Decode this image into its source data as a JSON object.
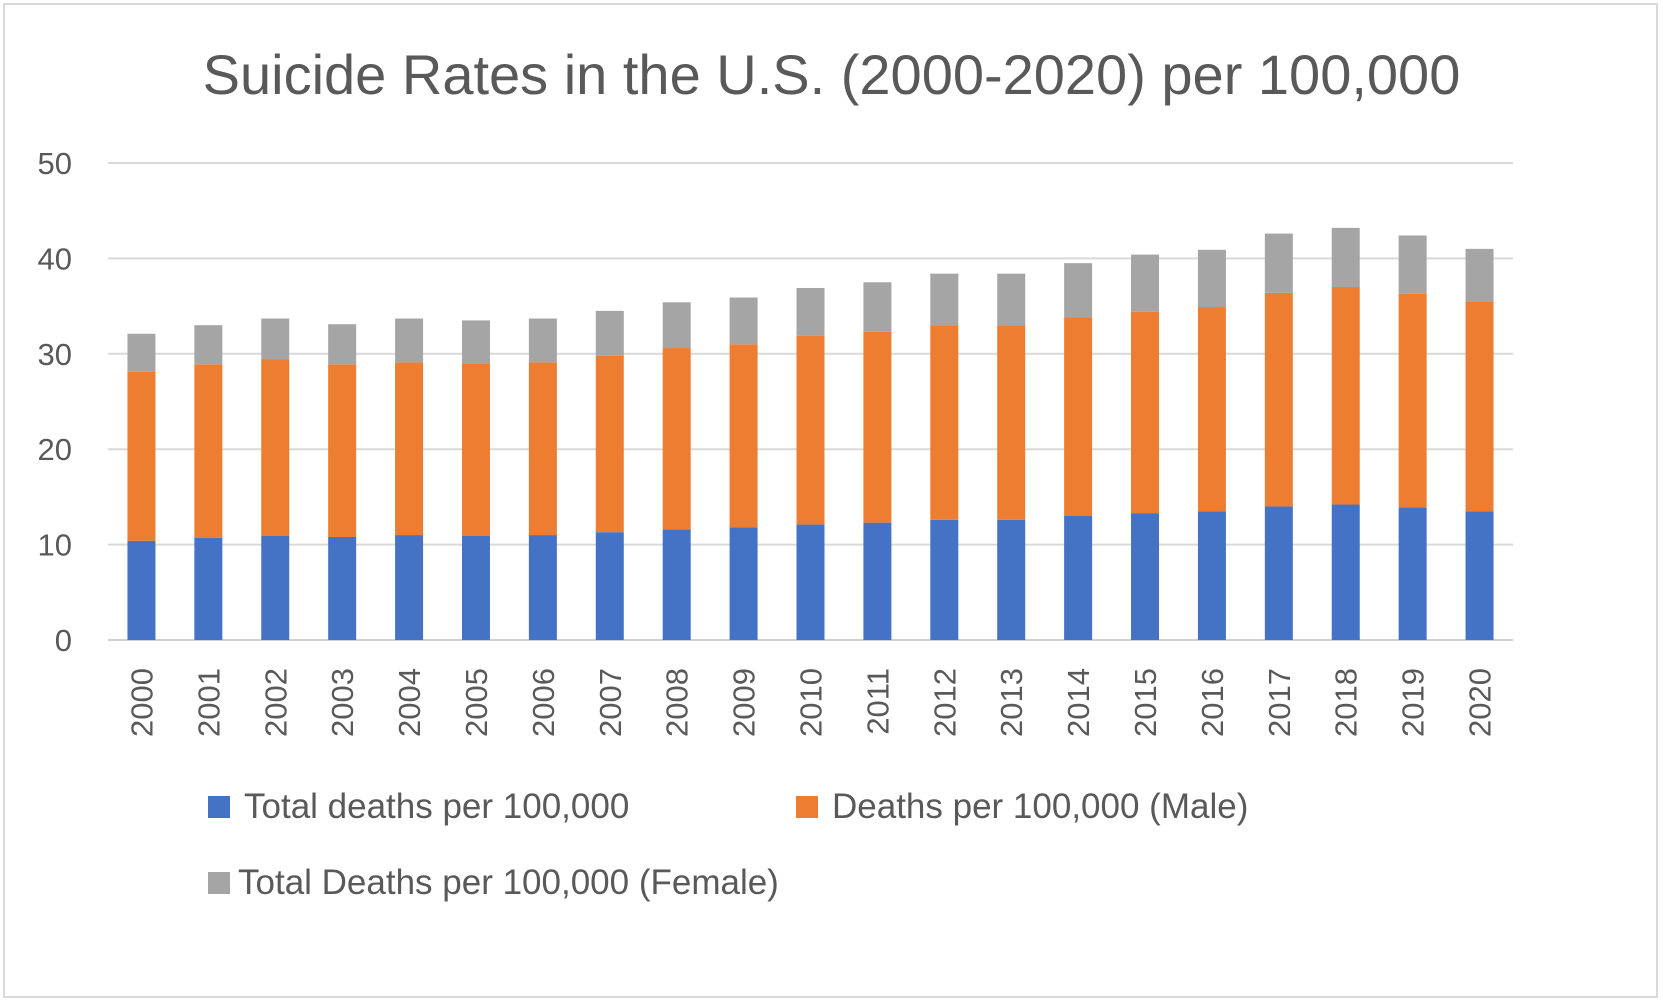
{
  "chart_data": {
    "type": "bar",
    "stacked": true,
    "title": "Suicide Rates in the U.S. (2000-2020) per 100,000",
    "xlabel": "",
    "ylabel": "",
    "ylim": [
      0,
      50
    ],
    "yticks": [
      "0",
      "10",
      "20",
      "30",
      "40",
      "50"
    ],
    "grid": true,
    "legend_position": "bottom",
    "categories": [
      "2000",
      "2001",
      "2002",
      "2003",
      "2004",
      "2005",
      "2006",
      "2007",
      "2008",
      "2009",
      "2010",
      "2011",
      "2012",
      "2013",
      "2014",
      "2015",
      "2016",
      "2017",
      "2018",
      "2019",
      "2020"
    ],
    "series": [
      {
        "name": "Total deaths per 100,000",
        "color": "#4472c4",
        "values": [
          10.4,
          10.7,
          10.9,
          10.8,
          11.0,
          10.9,
          11.0,
          11.3,
          11.6,
          11.8,
          12.1,
          12.3,
          12.6,
          12.6,
          13.0,
          13.3,
          13.5,
          14.0,
          14.2,
          13.9,
          13.5
        ]
      },
      {
        "name": "Deaths per 100,000 (Male)",
        "color": "#ed7d31",
        "values": [
          17.7,
          18.2,
          18.5,
          18.1,
          18.1,
          18.1,
          18.1,
          18.5,
          19.0,
          19.2,
          19.8,
          20.0,
          20.4,
          20.4,
          20.8,
          21.1,
          21.4,
          22.4,
          22.8,
          22.4,
          22.0
        ]
      },
      {
        "name": "Total Deaths per 100,000 (Female)",
        "color": "#a5a5a5",
        "values": [
          4.0,
          4.1,
          4.3,
          4.2,
          4.6,
          4.5,
          4.6,
          4.7,
          4.8,
          4.9,
          5.0,
          5.2,
          5.4,
          5.4,
          5.7,
          6.0,
          6.0,
          6.2,
          6.2,
          6.1,
          5.5
        ]
      }
    ]
  }
}
